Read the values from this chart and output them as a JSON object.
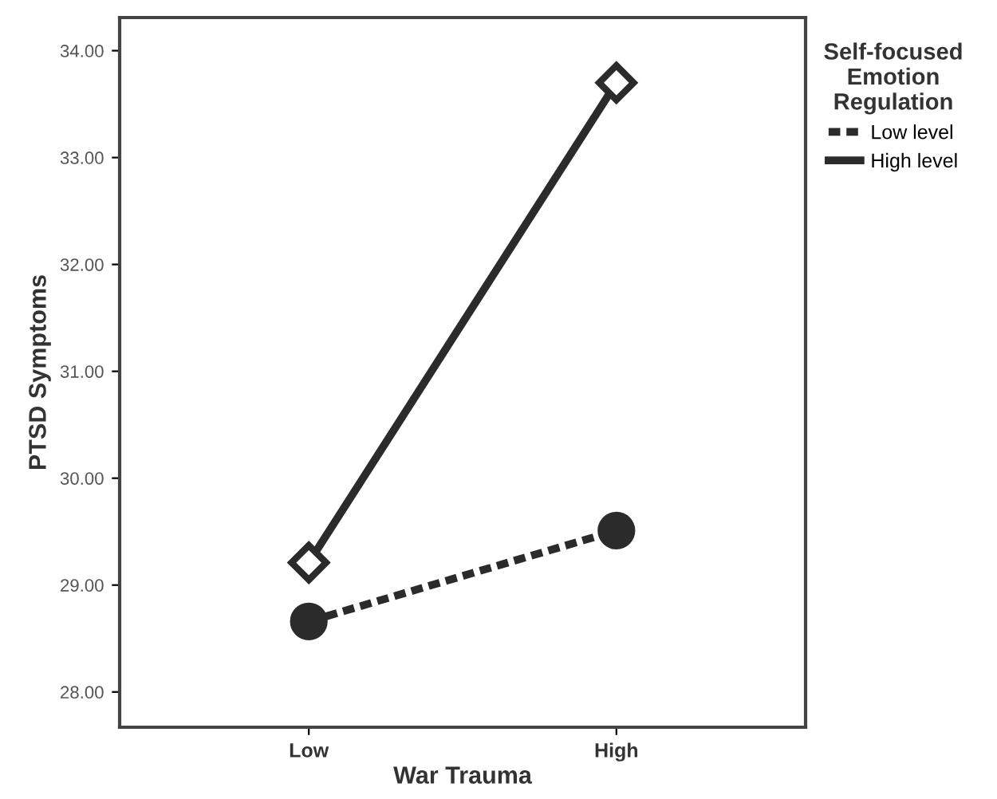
{
  "chart_data": {
    "type": "line",
    "xlabel": "War Trauma",
    "ylabel": "PTSD Symptoms",
    "legend_title": "Self-focused\nEmotion\nRegulation",
    "categories": [
      "Low",
      "High"
    ],
    "series": [
      {
        "name": "Low level",
        "color": "#2b2b2b",
        "values": [
          28.66,
          29.51
        ],
        "line_style": "dashed",
        "marker": "circle"
      },
      {
        "name": "High level",
        "color": "#2b2b2b",
        "values": [
          29.21,
          33.7
        ],
        "line_style": "solid",
        "marker": "diamond"
      }
    ],
    "ylim": [
      27.67,
      34.31
    ],
    "yticks": [
      {
        "value": 28,
        "label": "28.00"
      },
      {
        "value": 29,
        "label": "29.00"
      },
      {
        "value": 30,
        "label": "30.00"
      },
      {
        "value": 31,
        "label": "31.00"
      },
      {
        "value": 32,
        "label": "32.00"
      },
      {
        "value": 33,
        "label": "33.00"
      },
      {
        "value": 34,
        "label": "34.00"
      }
    ],
    "grid": false,
    "legend": "top right"
  }
}
